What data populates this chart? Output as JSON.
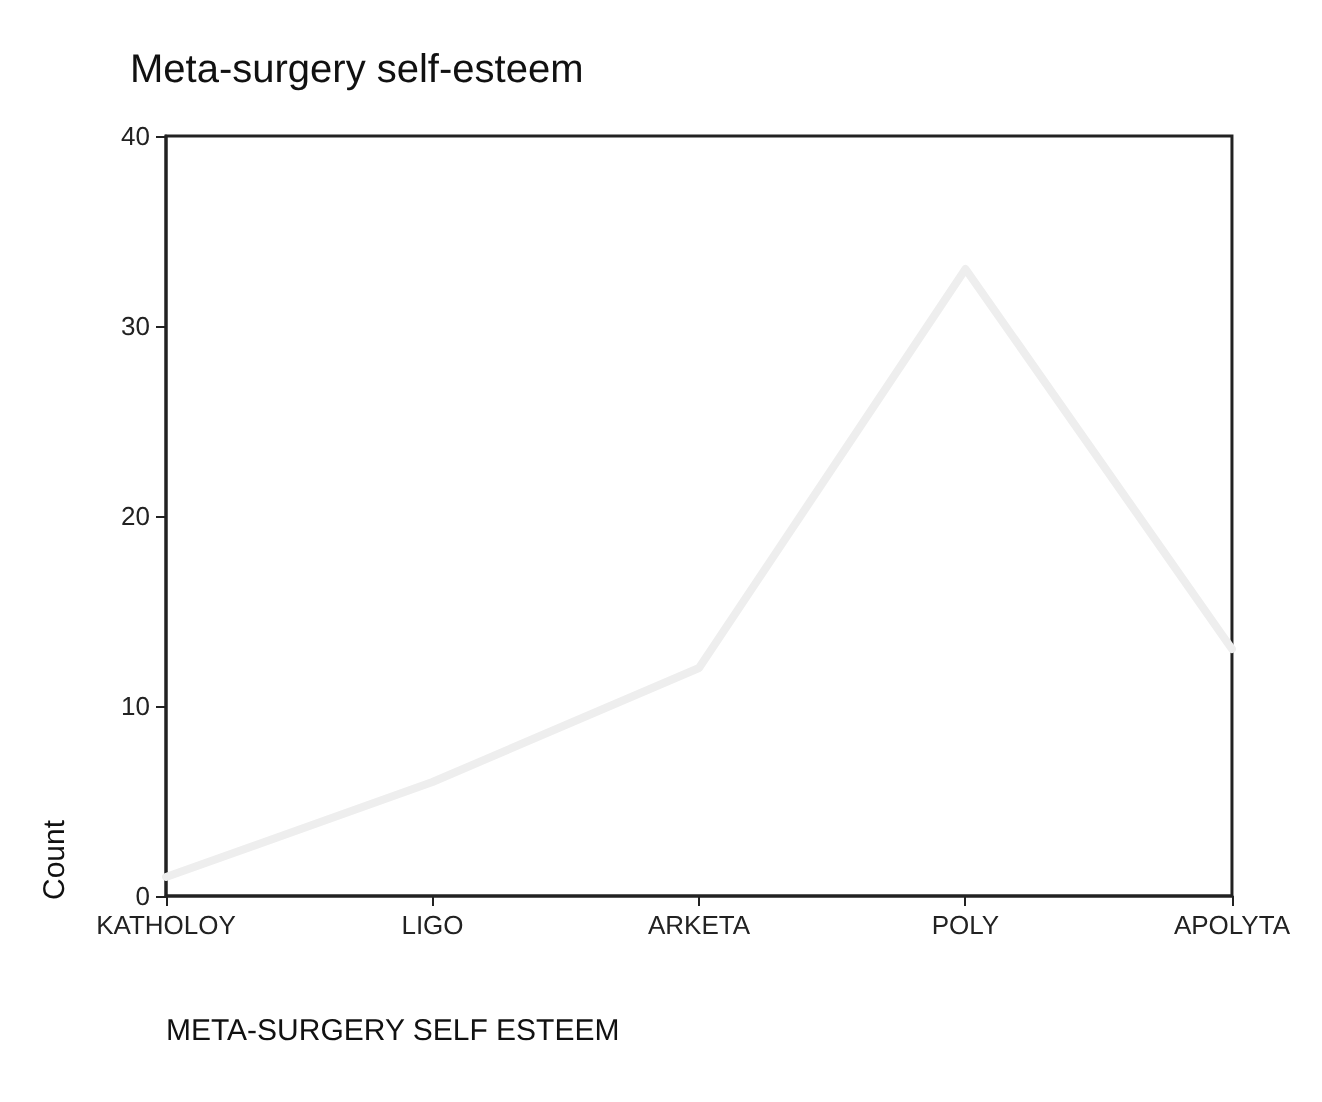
{
  "chart_data": {
    "type": "line",
    "title": "Meta-surgery self-esteem",
    "xlabel": "META-SURGERY SELF ESTEEM",
    "ylabel": "Count",
    "categories": [
      "KATHOLOY",
      "LIGO",
      "ARKETA",
      "POLY",
      "APOLYTA"
    ],
    "series": [
      {
        "color": "#eeeeee",
        "values": [
          1,
          6,
          12,
          33,
          13
        ]
      }
    ],
    "ylim": [
      0,
      40
    ],
    "yticks": [
      0,
      10,
      20,
      30,
      40
    ],
    "grid": false,
    "marker": "none",
    "line_style": "solid"
  }
}
